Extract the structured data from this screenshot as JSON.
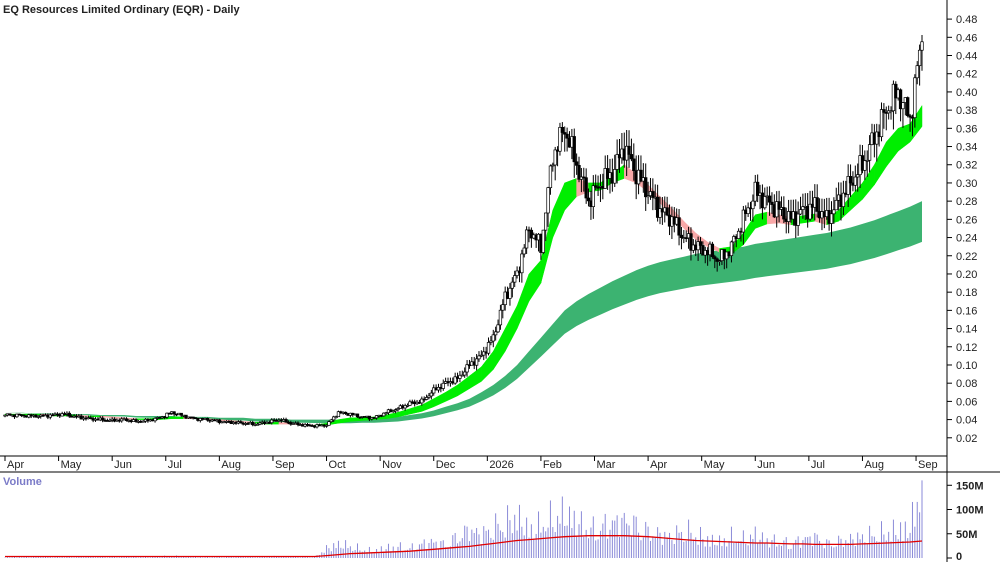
{
  "chart_data": [
    {
      "type": "candlestick",
      "title": "EQ Resources Limited Ordinary (EQR) - Daily",
      "xlabel": "",
      "ylabel": "",
      "ylim": [
        0.0,
        0.49
      ],
      "y_ticks": [
        "0.48",
        "0.46",
        "0.44",
        "0.42",
        "0.40",
        "0.38",
        "0.36",
        "0.34",
        "0.32",
        "0.30",
        "0.28",
        "0.26",
        "0.24",
        "0.22",
        "0.20",
        "0.18",
        "0.16",
        "0.14",
        "0.12",
        "0.10",
        "0.08",
        "0.06",
        "0.04",
        "0.02"
      ],
      "y_tick_values": [
        0.48,
        0.46,
        0.44,
        0.42,
        0.4,
        0.38,
        0.36,
        0.34,
        0.32,
        0.3,
        0.28,
        0.26,
        0.24,
        0.22,
        0.2,
        0.18,
        0.16,
        0.14,
        0.12,
        0.1,
        0.08,
        0.06,
        0.04,
        0.02
      ],
      "x_ticks": [
        "Apr",
        "May",
        "Jun",
        "Jul",
        "Aug",
        "Sep",
        "Oct",
        "Nov",
        "Dec",
        "2026",
        "Feb",
        "Mar",
        "Apr",
        "May",
        "Jun",
        "Jul",
        "Aug",
        "Sep"
      ],
      "x_tick_weeks": [
        0,
        4.5,
        9,
        13.5,
        18,
        22.5,
        27,
        31.5,
        36,
        40.5,
        45,
        49.5,
        54,
        58.5,
        63,
        67.5,
        72,
        76.5
      ],
      "close_weekly": [
        0.045,
        0.045,
        0.044,
        0.044,
        0.045,
        0.046,
        0.043,
        0.041,
        0.04,
        0.039,
        0.04,
        0.038,
        0.039,
        0.042,
        0.048,
        0.044,
        0.041,
        0.04,
        0.038,
        0.037,
        0.036,
        0.035,
        0.037,
        0.04,
        0.036,
        0.034,
        0.033,
        0.034,
        0.048,
        0.046,
        0.043,
        0.042,
        0.048,
        0.052,
        0.058,
        0.06,
        0.072,
        0.08,
        0.085,
        0.1,
        0.11,
        0.13,
        0.175,
        0.2,
        0.25,
        0.23,
        0.33,
        0.36,
        0.32,
        0.28,
        0.3,
        0.31,
        0.34,
        0.31,
        0.29,
        0.27,
        0.26,
        0.24,
        0.23,
        0.225,
        0.215,
        0.23,
        0.26,
        0.29,
        0.28,
        0.27,
        0.26,
        0.27,
        0.275,
        0.26,
        0.28,
        0.3,
        0.32,
        0.35,
        0.38,
        0.4,
        0.37,
        0.46
      ],
      "short_ema_ribbon": {
        "upper": [
          0.046,
          0.046,
          0.046,
          0.046,
          0.045,
          0.045,
          0.045,
          0.044,
          0.044,
          0.043,
          0.042,
          0.041,
          0.041,
          0.042,
          0.043,
          0.043,
          0.042,
          0.041,
          0.04,
          0.039,
          0.038,
          0.037,
          0.037,
          0.037,
          0.036,
          0.035,
          0.034,
          0.036,
          0.04,
          0.042,
          0.042,
          0.043,
          0.045,
          0.048,
          0.052,
          0.056,
          0.063,
          0.07,
          0.078,
          0.088,
          0.098,
          0.115,
          0.14,
          0.165,
          0.2,
          0.215,
          0.27,
          0.3,
          0.305,
          0.3,
          0.3,
          0.31,
          0.32,
          0.31,
          0.298,
          0.285,
          0.272,
          0.258,
          0.245,
          0.235,
          0.228,
          0.23,
          0.245,
          0.265,
          0.268,
          0.265,
          0.262,
          0.264,
          0.266,
          0.262,
          0.27,
          0.285,
          0.3,
          0.32,
          0.345,
          0.36,
          0.365,
          0.385
        ],
        "lower": [
          0.045,
          0.045,
          0.045,
          0.045,
          0.044,
          0.044,
          0.044,
          0.043,
          0.043,
          0.042,
          0.041,
          0.04,
          0.04,
          0.04,
          0.041,
          0.041,
          0.041,
          0.04,
          0.039,
          0.038,
          0.037,
          0.036,
          0.035,
          0.035,
          0.035,
          0.034,
          0.033,
          0.034,
          0.036,
          0.038,
          0.039,
          0.04,
          0.041,
          0.043,
          0.046,
          0.049,
          0.054,
          0.06,
          0.066,
          0.074,
          0.082,
          0.095,
          0.115,
          0.14,
          0.17,
          0.19,
          0.24,
          0.27,
          0.285,
          0.29,
          0.292,
          0.3,
          0.305,
          0.3,
          0.29,
          0.278,
          0.264,
          0.25,
          0.238,
          0.23,
          0.224,
          0.222,
          0.232,
          0.25,
          0.255,
          0.256,
          0.254,
          0.256,
          0.258,
          0.254,
          0.258,
          0.27,
          0.282,
          0.298,
          0.318,
          0.335,
          0.345,
          0.362
        ]
      },
      "long_ema_ribbon": {
        "upper": [
          0.048,
          0.048,
          0.047,
          0.047,
          0.047,
          0.046,
          0.046,
          0.046,
          0.045,
          0.045,
          0.045,
          0.044,
          0.044,
          0.044,
          0.044,
          0.043,
          0.043,
          0.043,
          0.042,
          0.042,
          0.042,
          0.041,
          0.041,
          0.041,
          0.04,
          0.04,
          0.04,
          0.04,
          0.04,
          0.04,
          0.041,
          0.041,
          0.042,
          0.043,
          0.045,
          0.047,
          0.05,
          0.054,
          0.058,
          0.063,
          0.07,
          0.078,
          0.088,
          0.1,
          0.115,
          0.13,
          0.145,
          0.16,
          0.17,
          0.178,
          0.185,
          0.192,
          0.198,
          0.204,
          0.209,
          0.213,
          0.216,
          0.219,
          0.222,
          0.224,
          0.226,
          0.228,
          0.23,
          0.233,
          0.235,
          0.237,
          0.239,
          0.241,
          0.243,
          0.245,
          0.248,
          0.251,
          0.255,
          0.259,
          0.264,
          0.269,
          0.274,
          0.28
        ]
      },
      "legend": []
    },
    {
      "type": "bar",
      "title": "Volume",
      "ylim": [
        0,
        165
      ],
      "y_ticks": [
        "150M",
        "100M",
        "50M",
        "0"
      ],
      "y_tick_values": [
        150,
        100,
        50,
        0
      ],
      "values_weekly_M": [
        2,
        2,
        2,
        3,
        2,
        2,
        2,
        3,
        2,
        2,
        3,
        2,
        2,
        3,
        4,
        3,
        2,
        2,
        2,
        2,
        3,
        2,
        3,
        4,
        3,
        2,
        2,
        20,
        30,
        25,
        18,
        15,
        22,
        24,
        20,
        30,
        35,
        28,
        45,
        60,
        50,
        65,
        75,
        90,
        60,
        70,
        85,
        95,
        80,
        60,
        65,
        75,
        80,
        70,
        55,
        50,
        45,
        60,
        50,
        40,
        35,
        45,
        40,
        50,
        38,
        35,
        30,
        40,
        45,
        30,
        35,
        40,
        45,
        50,
        55,
        60,
        65,
        160
      ],
      "ma_weekly_M": [
        3,
        3,
        3,
        3,
        3,
        3,
        3,
        3,
        3,
        3,
        3,
        3,
        3,
        3,
        3,
        3,
        3,
        3,
        3,
        3,
        3,
        3,
        3,
        3,
        3,
        3,
        3,
        5,
        7,
        9,
        10,
        11,
        12,
        13,
        14,
        16,
        18,
        20,
        22,
        24,
        27,
        30,
        33,
        36,
        38,
        40,
        42,
        44,
        45,
        46,
        46,
        46,
        46,
        45,
        44,
        42,
        40,
        38,
        36,
        35,
        34,
        33,
        32,
        31,
        31,
        30,
        29,
        29,
        28,
        28,
        28,
        28,
        29,
        30,
        31,
        32,
        33,
        35
      ]
    }
  ],
  "colors": {
    "candle": "#000000",
    "short_ribbon_up": "#00ee00",
    "short_ribbon_down": "#f8a8a8",
    "short_ribbon_cross": "#f06a2a",
    "long_ribbon": "#3cb371",
    "volume_bar": "#8a8ad8",
    "volume_ma": "#e00000",
    "axis": "#000000"
  }
}
